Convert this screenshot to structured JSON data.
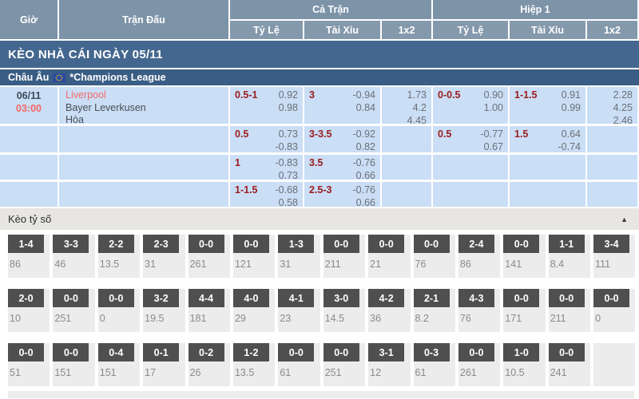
{
  "header": {
    "col_gio": "Giờ",
    "col_tran_dau": "Trận Đấu",
    "group_ca_tran": "Cả Trận",
    "group_hiep_1": "Hiệp 1",
    "sub_ty_le": "Tỷ Lệ",
    "sub_tai_xiu": "Tài Xỉu",
    "sub_1x2": "1x2"
  },
  "banner": {
    "title": "KÈO NHÀ CÁI NGÀY 05/11"
  },
  "league": {
    "region": "Châu Âu",
    "name": "*Champions League",
    "flag_icon": "eu-flag"
  },
  "match": {
    "date": "06/11",
    "time": "03:00",
    "home": "Liverpool",
    "away": "Bayer Leverkusen",
    "draw_label": "Hòa"
  },
  "odds_rows": [
    {
      "ft_handicap": {
        "line": "0.5-1",
        "top": "0.92",
        "bottom": "0.98"
      },
      "ft_ou": {
        "line": "3",
        "top": "-0.94",
        "bottom": "0.84"
      },
      "ft_1x2": [
        "1.73",
        "4.2",
        "4.45"
      ],
      "h1_handicap": {
        "line": "0-0.5",
        "top": "0.90",
        "bottom": "1.00"
      },
      "h1_ou": {
        "line": "1-1.5",
        "top": "0.91",
        "bottom": "0.99"
      },
      "h1_1x2": [
        "2.28",
        "4.25",
        "2.46"
      ]
    },
    {
      "ft_handicap": {
        "line": "0.5",
        "top": "0.73",
        "bottom": "-0.83"
      },
      "ft_ou": {
        "line": "3-3.5",
        "top": "-0.92",
        "bottom": "0.82"
      },
      "ft_1x2": null,
      "h1_handicap": {
        "line": "0.5",
        "top": "-0.77",
        "bottom": "0.67"
      },
      "h1_ou": {
        "line": "1.5",
        "top": "0.64",
        "bottom": "-0.74"
      },
      "h1_1x2": null
    },
    {
      "ft_handicap": {
        "line": "1",
        "top": "-0.83",
        "bottom": "0.73"
      },
      "ft_ou": {
        "line": "3.5",
        "top": "-0.76",
        "bottom": "0.66"
      },
      "ft_1x2": null,
      "h1_handicap": null,
      "h1_ou": null,
      "h1_1x2": null
    },
    {
      "ft_handicap": {
        "line": "1-1.5",
        "top": "-0.68",
        "bottom": "0.58"
      },
      "ft_ou": {
        "line": "2.5-3",
        "top": "-0.76",
        "bottom": "0.66"
      },
      "ft_1x2": null,
      "h1_handicap": null,
      "h1_ou": null,
      "h1_1x2": null
    }
  ],
  "score_section": {
    "title": "Kèo tỷ số",
    "collapse_icon": "▲",
    "rows": [
      [
        {
          "score": "1-4",
          "odds": "86"
        },
        {
          "score": "3-3",
          "odds": "46"
        },
        {
          "score": "2-2",
          "odds": "13.5"
        },
        {
          "score": "2-3",
          "odds": "31"
        },
        {
          "score": "0-0",
          "odds": "261"
        },
        {
          "score": "0-0",
          "odds": "121"
        },
        {
          "score": "1-3",
          "odds": "31"
        },
        {
          "score": "0-0",
          "odds": "211"
        },
        {
          "score": "0-0",
          "odds": "21"
        },
        {
          "score": "0-0",
          "odds": "76"
        },
        {
          "score": "2-4",
          "odds": "86"
        },
        {
          "score": "0-0",
          "odds": "141"
        },
        {
          "score": "1-1",
          "odds": "8.4"
        },
        {
          "score": "3-4",
          "odds": "111"
        }
      ],
      [
        {
          "score": "2-0",
          "odds": "10"
        },
        {
          "score": "0-0",
          "odds": "251"
        },
        {
          "score": "0-0",
          "odds": "0"
        },
        {
          "score": "3-2",
          "odds": "19.5"
        },
        {
          "score": "4-4",
          "odds": "181"
        },
        {
          "score": "4-0",
          "odds": "29"
        },
        {
          "score": "4-1",
          "odds": "23"
        },
        {
          "score": "3-0",
          "odds": "14.5"
        },
        {
          "score": "4-2",
          "odds": "36"
        },
        {
          "score": "2-1",
          "odds": "8.2"
        },
        {
          "score": "4-3",
          "odds": "76"
        },
        {
          "score": "0-0",
          "odds": "171"
        },
        {
          "score": "0-0",
          "odds": "211"
        },
        {
          "score": "0-0",
          "odds": "0"
        }
      ],
      [
        {
          "score": "0-0",
          "odds": "51"
        },
        {
          "score": "0-0",
          "odds": "151"
        },
        {
          "score": "0-4",
          "odds": "151"
        },
        {
          "score": "0-1",
          "odds": "17"
        },
        {
          "score": "0-2",
          "odds": "26"
        },
        {
          "score": "1-2",
          "odds": "13.5"
        },
        {
          "score": "0-0",
          "odds": "61"
        },
        {
          "score": "0-0",
          "odds": "251"
        },
        {
          "score": "3-1",
          "odds": "12"
        },
        {
          "score": "0-3",
          "odds": "61"
        },
        {
          "score": "0-0",
          "odds": "261"
        },
        {
          "score": "1-0",
          "odds": "10.5"
        },
        {
          "score": "0-0",
          "odds": "241"
        },
        {
          "score": "",
          "odds": ""
        }
      ]
    ]
  },
  "colors": {
    "header_blue": "#7d93a8",
    "subheader_blue": "#8599ac",
    "banner_blue": "#44678f",
    "league_navy": "#3a5d85",
    "odds_cell_blue": "#cadef5",
    "handicap_maroon": "#9b1c1c",
    "accent_red": "#f46969",
    "score_box_gray": "#4f4f4f",
    "score_cell_gray": "#ececec"
  }
}
